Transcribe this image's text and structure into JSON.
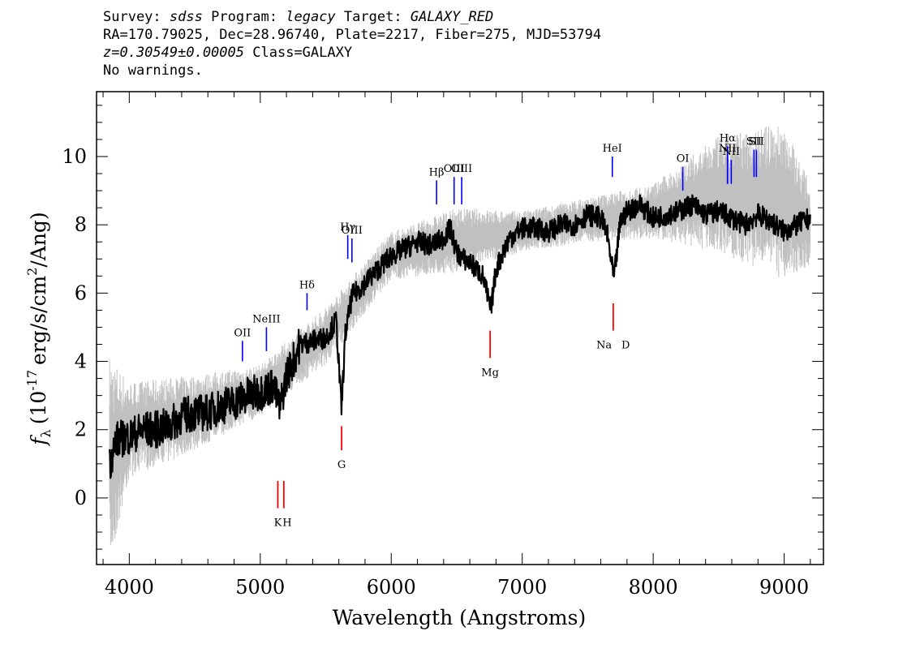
{
  "header": {
    "line1": {
      "survey_label": "Survey:",
      "survey": "sdss",
      "program_label": "Program:",
      "program": "legacy",
      "target_label": "Target:",
      "target": "GALAXY_RED"
    },
    "line2": "RA=170.79025, Dec=28.96740, Plate=2217, Fiber=275, MJD=53794",
    "line3": {
      "z": "z=0.30549±0.00005",
      "class": "Class=GALAXY"
    },
    "line4": "No warnings."
  },
  "chart_data": {
    "type": "line",
    "xlabel": "Wavelength (Angstroms)",
    "ylabel": "f_λ (10^-17 erg/s/cm^2/Ang)",
    "ylabel_parts": {
      "f": "f",
      "sub": "λ",
      "pre": "(10",
      "exp1": "-17",
      "mid": "erg/s/cm",
      "exp2": "2",
      "post": "/Ang)"
    },
    "xlim": [
      3750,
      9300
    ],
    "ylim": [
      -1.95,
      11.9
    ],
    "x_ticks": [
      4000,
      5000,
      6000,
      7000,
      8000,
      9000
    ],
    "y_ticks": [
      0,
      2,
      4,
      6,
      8,
      10
    ],
    "series": [
      {
        "role": "smoothed flux",
        "color": "#000000",
        "x": [
          3850,
          3900,
          4000,
          4100,
          4200,
          4300,
          4400,
          4500,
          4600,
          4700,
          4800,
          4900,
          5000,
          5100,
          5150,
          5200,
          5250,
          5300,
          5400,
          5500,
          5580,
          5620,
          5650,
          5700,
          5800,
          5900,
          6000,
          6100,
          6200,
          6300,
          6400,
          6450,
          6500,
          6550,
          6600,
          6700,
          6760,
          6800,
          6900,
          7000,
          7100,
          7200,
          7300,
          7400,
          7500,
          7600,
          7650,
          7700,
          7750,
          7800,
          7900,
          8000,
          8100,
          8200,
          8300,
          8400,
          8500,
          8600,
          8700,
          8800,
          8900,
          9000,
          9100,
          9200
        ],
        "y": [
          1.0,
          1.7,
          1.8,
          2.0,
          2.0,
          2.1,
          2.4,
          2.5,
          2.5,
          2.7,
          2.8,
          3.0,
          3.1,
          3.3,
          2.6,
          3.6,
          4.0,
          4.5,
          4.6,
          4.7,
          5.2,
          2.6,
          4.8,
          5.9,
          6.3,
          6.7,
          7.1,
          7.3,
          7.5,
          7.4,
          7.6,
          7.9,
          7.2,
          7.0,
          6.9,
          6.5,
          5.5,
          6.7,
          7.6,
          7.9,
          7.9,
          7.8,
          8.0,
          8.0,
          8.3,
          8.2,
          7.7,
          6.4,
          8.1,
          8.4,
          8.6,
          8.2,
          8.3,
          8.4,
          8.6,
          8.3,
          8.4,
          8.2,
          8.0,
          8.3,
          8.1,
          7.8,
          8.0,
          8.2
        ]
      },
      {
        "role": "error band",
        "color": "#c0c0c0",
        "x": [
          3850,
          4000,
          4500,
          5000,
          5500,
          6000,
          6500,
          7000,
          7500,
          8000,
          8500,
          9000,
          9200
        ],
        "y_low": [
          -2.0,
          0.6,
          1.4,
          2.4,
          3.9,
          6.4,
          6.6,
          7.2,
          7.5,
          7.6,
          7.2,
          6.4,
          6.8
        ],
        "y_high": [
          4.2,
          3.4,
          3.6,
          3.9,
          5.6,
          7.8,
          8.5,
          8.4,
          8.8,
          9.2,
          10.6,
          11.0,
          9.2
        ]
      }
    ],
    "emission_lines": [
      {
        "label": "OII",
        "x": 4864,
        "y": [
          4.0,
          4.6
        ]
      },
      {
        "label": "NeIII",
        "x": 5047,
        "y": [
          4.3,
          5.0
        ]
      },
      {
        "label": "Hδ",
        "x": 5357,
        "y": [
          5.5,
          6.0
        ]
      },
      {
        "label": "Hγ",
        "x": 5668,
        "y": [
          7.0,
          7.7
        ]
      },
      {
        "label": "OIII",
        "x": 5700,
        "y": [
          6.9,
          7.6
        ]
      },
      {
        "label": "Hβ",
        "x": 6346,
        "y": [
          8.6,
          9.3
        ]
      },
      {
        "label": "OIII",
        "x": 6480,
        "y": [
          8.6,
          9.4
        ]
      },
      {
        "label": "OIII",
        "x": 6538,
        "y": [
          8.6,
          9.4
        ]
      },
      {
        "label": "HeI",
        "x": 7688,
        "y": [
          9.4,
          10.0
        ]
      },
      {
        "label": "OI",
        "x": 8226,
        "y": [
          9.0,
          9.7
        ]
      },
      {
        "label": "NII",
        "x": 8567,
        "y": [
          9.2,
          10.0
        ]
      },
      {
        "label": "Hα",
        "x": 8568,
        "y": [
          9.2,
          10.3
        ]
      },
      {
        "label": "NII",
        "x": 8596,
        "y": [
          9.2,
          9.9
        ]
      },
      {
        "label": "SII",
        "x": 8770,
        "y": [
          9.4,
          10.2
        ]
      },
      {
        "label": "SII",
        "x": 8788,
        "y": [
          9.4,
          10.2
        ]
      }
    ],
    "label_positions_note": "",
    "absorption_lines": [
      {
        "label": "K",
        "x": 5134,
        "y": [
          -0.3,
          0.5
        ]
      },
      {
        "label": "H",
        "x": 5180,
        "y": [
          -0.3,
          0.5
        ]
      },
      {
        "label": "G",
        "x": 5621,
        "y": [
          1.4,
          2.1
        ]
      },
      {
        "label": "Mg",
        "x": 6755,
        "y": [
          4.1,
          4.9
        ]
      },
      {
        "label": "Na D",
        "x": 7695,
        "y": [
          4.9,
          5.7
        ]
      }
    ],
    "emission_color": "#0000ff",
    "absorption_color": "#ff0000"
  }
}
